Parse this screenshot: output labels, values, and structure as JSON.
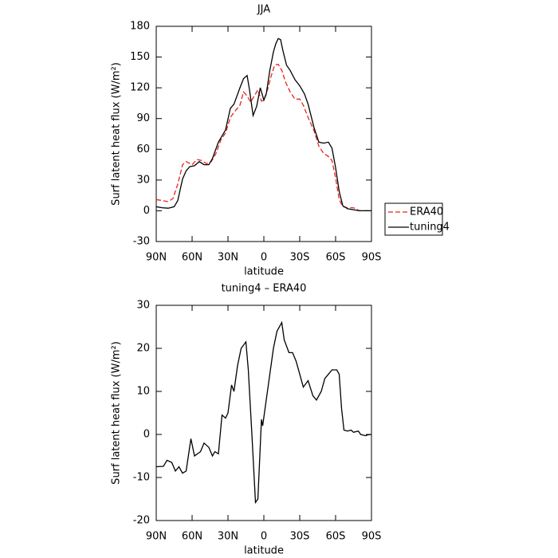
{
  "chart_data": [
    {
      "type": "line",
      "title": "JJA",
      "xlabel": "latitude",
      "ylabel": "Surf latent heat flux (W/m²)",
      "xlim": [
        90,
        -90
      ],
      "ylim": [
        -30,
        180
      ],
      "xticks": [
        {
          "value": 90,
          "label": "90N"
        },
        {
          "value": 60,
          "label": "60N"
        },
        {
          "value": 30,
          "label": "30N"
        },
        0,
        {
          "value": -30,
          "label": "30S"
        },
        {
          "value": -60,
          "label": "60S"
        },
        {
          "value": -90,
          "label": "90S"
        }
      ],
      "yticks": [
        -30,
        0,
        30,
        60,
        90,
        120,
        150,
        180
      ],
      "legend": "right",
      "series": [
        {
          "name": "ERA40",
          "color": "#e8231f",
          "dashed": true,
          "x": [
            90,
            85,
            80,
            76,
            72,
            68,
            65,
            60,
            56,
            52,
            48,
            44,
            40,
            36,
            32,
            28,
            25,
            20,
            17,
            14,
            11,
            8,
            5,
            2,
            0,
            -3,
            -6,
            -9,
            -12,
            -15,
            -18,
            -22,
            -26,
            -30,
            -33,
            -37,
            -42,
            -46,
            -50,
            -54,
            -57,
            -60,
            -63,
            -66,
            -70,
            -75,
            -80,
            -85,
            -90
          ],
          "values": [
            11,
            10,
            9,
            12,
            26,
            45,
            48,
            45,
            50,
            49,
            46,
            48,
            56,
            69,
            76,
            91,
            96,
            103,
            116,
            112,
            106,
            112,
            118,
            107,
            108,
            118,
            131,
            142,
            143,
            137,
            126,
            116,
            109,
            109,
            103,
            91,
            78,
            63,
            56,
            53,
            49,
            32,
            11,
            4,
            3,
            3,
            0,
            0,
            0
          ]
        },
        {
          "name": "tuning4",
          "color": "#000000",
          "dashed": false,
          "x": [
            90,
            85,
            80,
            75,
            72,
            68,
            65,
            62,
            58,
            54,
            50,
            46,
            43,
            38,
            35,
            32,
            28,
            25,
            20,
            17,
            14,
            12,
            9,
            6,
            3,
            0,
            -2,
            -5,
            -8,
            -10,
            -12,
            -14,
            -16,
            -19,
            -22,
            -26,
            -30,
            -34,
            -37,
            -42,
            -46,
            -50,
            -54,
            -57,
            -60,
            -63,
            -66,
            -70,
            -75,
            -80,
            -85,
            -90
          ],
          "values": [
            4,
            3,
            2.5,
            4,
            10,
            31,
            39,
            43,
            44,
            48,
            45,
            45,
            51,
            67,
            73,
            79,
            100,
            104,
            120,
            129,
            132,
            118,
            93,
            102,
            120,
            108,
            114,
            137,
            155,
            163,
            168,
            167,
            156,
            142,
            137,
            128,
            122,
            114,
            104,
            81,
            67,
            66,
            67,
            61,
            42,
            19,
            5,
            2,
            1,
            0,
            0,
            0
          ]
        }
      ]
    },
    {
      "type": "line",
      "title": "tuning4 – ERA40",
      "xlabel": "latitude",
      "ylabel": "Surf latent heat flux (W/m²)",
      "xlim": [
        90,
        -90
      ],
      "ylim": [
        -20,
        30
      ],
      "xticks": [
        {
          "value": 90,
          "label": "90N"
        },
        {
          "value": 60,
          "label": "60N"
        },
        {
          "value": 30,
          "label": "30N"
        },
        0,
        {
          "value": -30,
          "label": "30S"
        },
        {
          "value": -60,
          "label": "60S"
        },
        {
          "value": -90,
          "label": "90S"
        }
      ],
      "yticks": [
        -20,
        -10,
        0,
        10,
        20,
        30
      ],
      "color": "#000000",
      "x": [
        90,
        84,
        81,
        77,
        74,
        71,
        68,
        65,
        61,
        58,
        53,
        50,
        46,
        43,
        41,
        38,
        35,
        32,
        30,
        27,
        25,
        22,
        19,
        15,
        13,
        10,
        7,
        5,
        2,
        1,
        -1,
        -4,
        -8,
        -11,
        -15,
        -17,
        -21,
        -24,
        -27,
        -31,
        -33,
        -37,
        -41,
        -44,
        -48,
        -51,
        -54,
        -57,
        -61,
        -63,
        -65,
        -67,
        -70,
        -73,
        -75,
        -79,
        -81,
        -85,
        -87,
        -90
      ],
      "values": [
        -7.5,
        -7.4,
        -6,
        -6.5,
        -8.5,
        -7.5,
        -9,
        -8.5,
        -1,
        -5,
        -4,
        -2,
        -3,
        -5,
        -4,
        -4.5,
        4.5,
        3.8,
        5,
        11.5,
        10,
        16,
        20,
        21.5,
        15,
        0,
        -15.8,
        -15,
        3.5,
        2,
        6,
        12,
        20,
        24,
        26,
        22,
        19,
        19,
        17,
        13,
        11,
        12.5,
        9,
        8,
        10,
        13,
        14,
        15,
        15,
        14,
        6,
        1,
        0.8,
        1,
        0.5,
        0.8,
        0,
        -0.3,
        -0.1,
        0
      ]
    }
  ]
}
